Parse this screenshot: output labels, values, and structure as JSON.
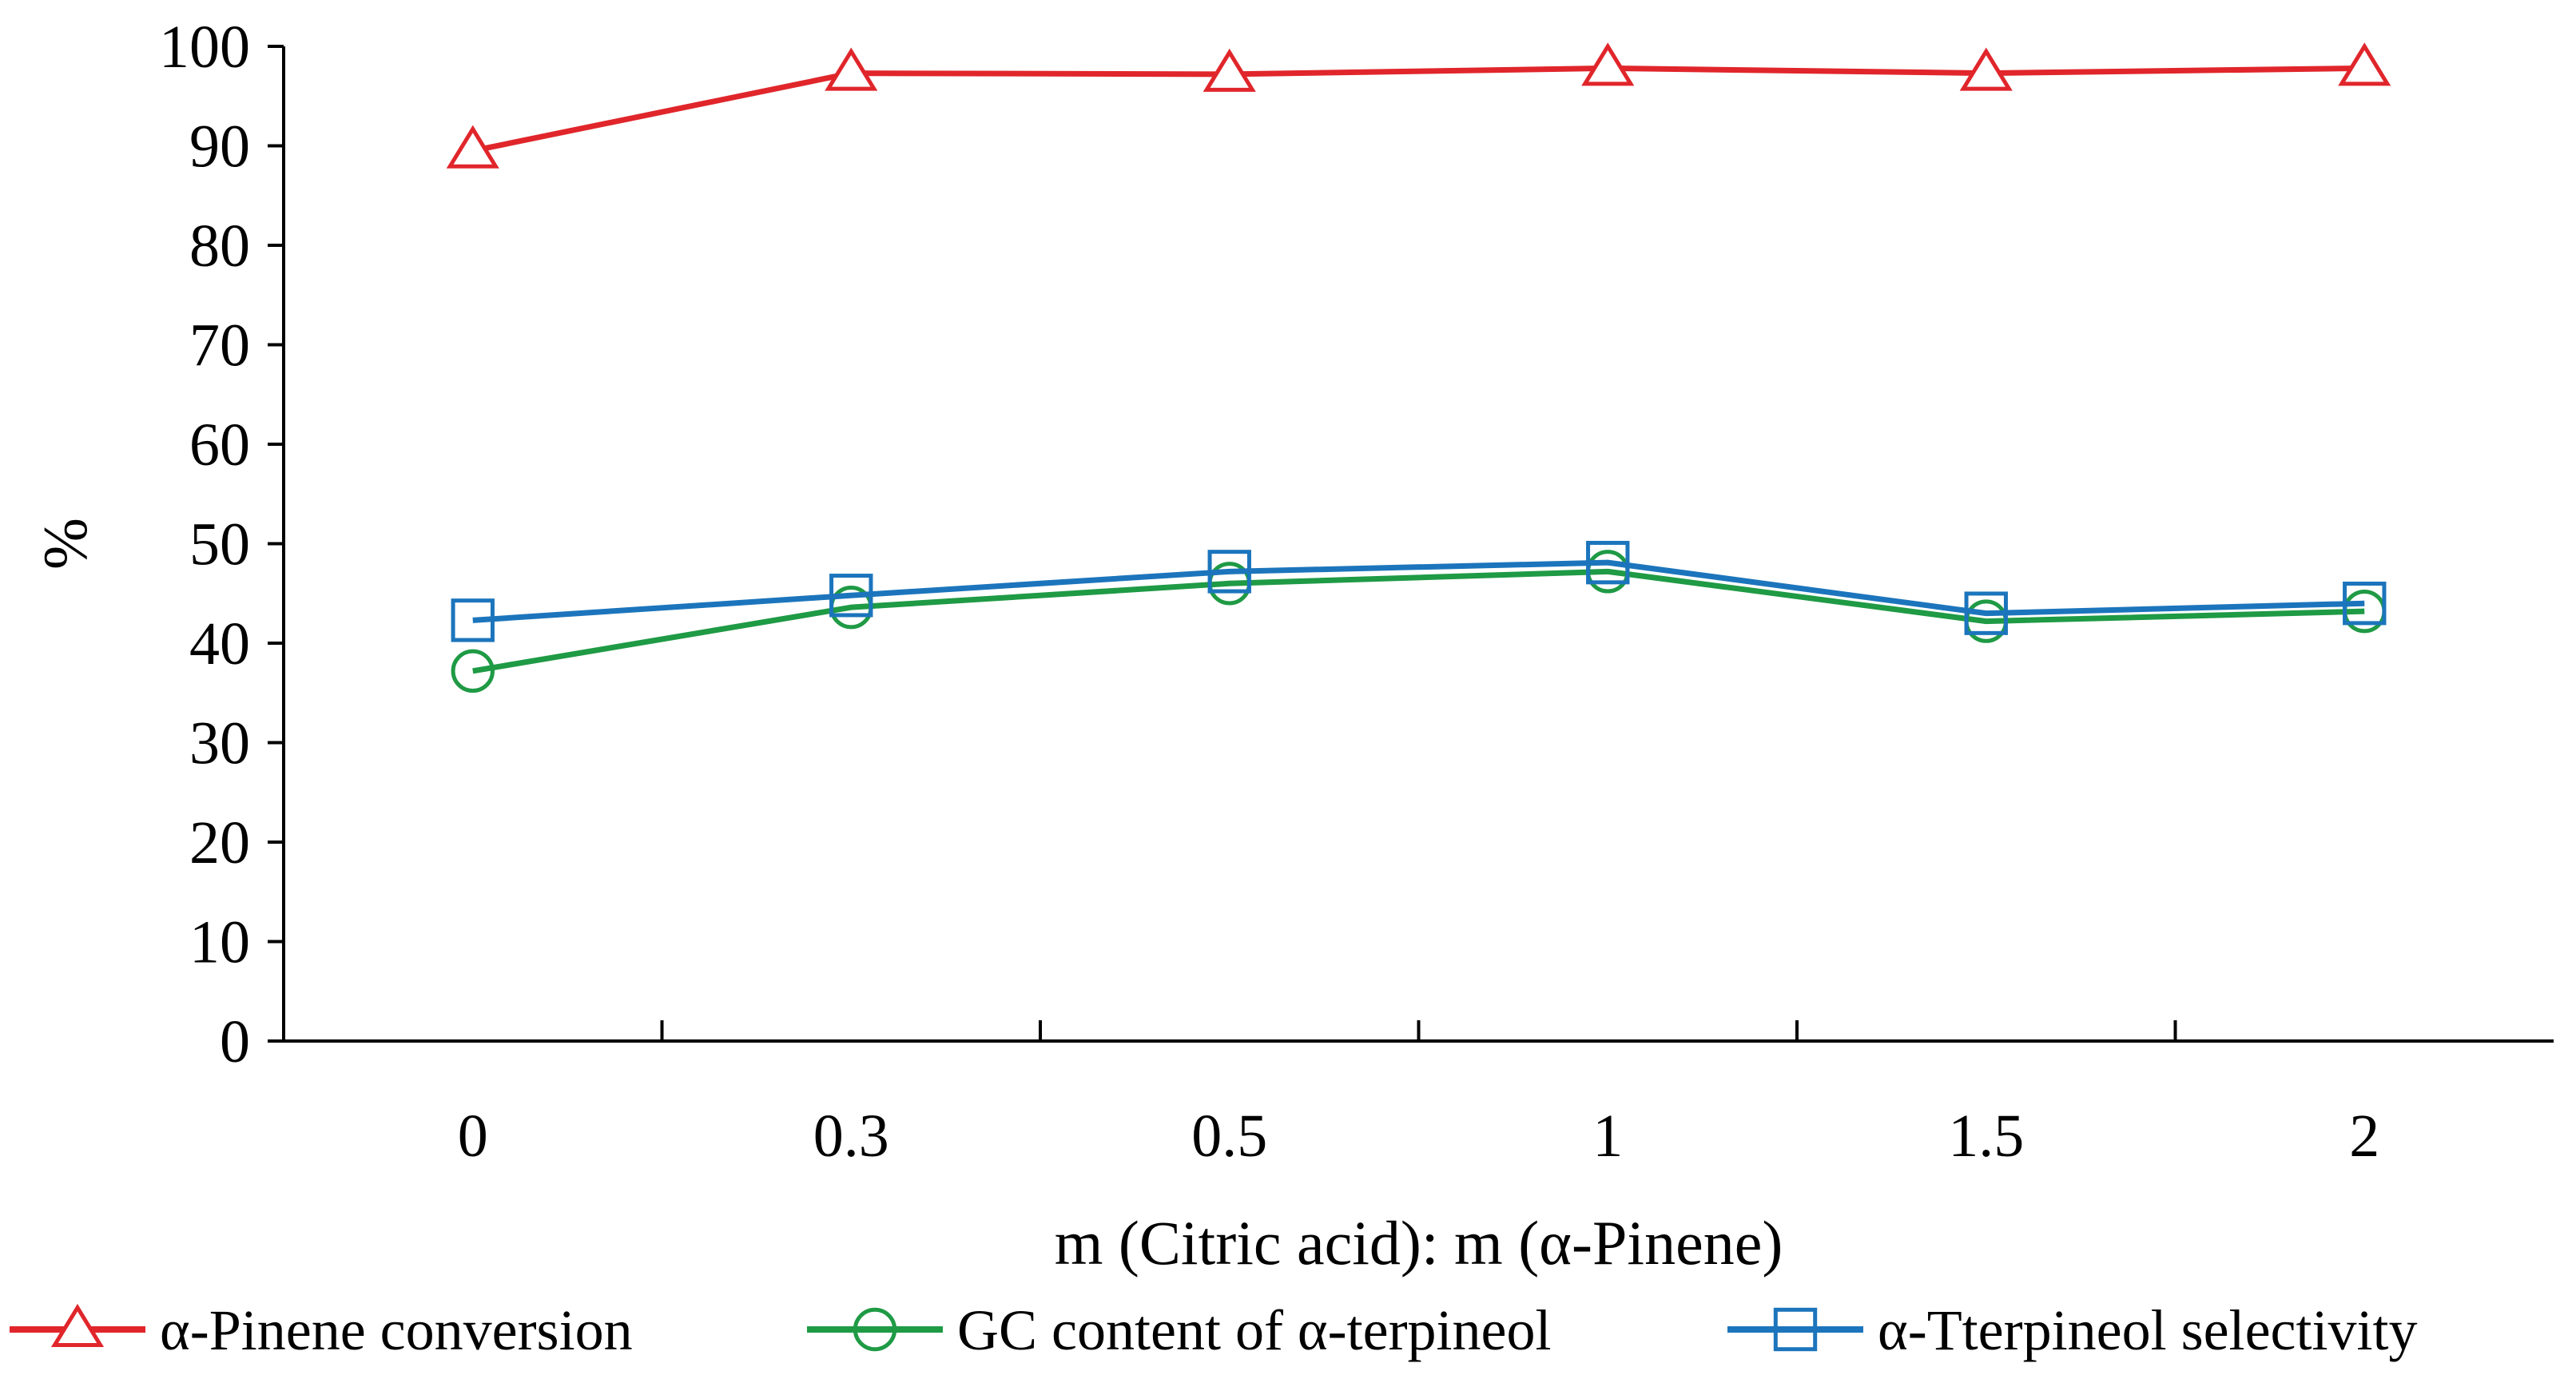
{
  "chart_data": {
    "type": "line",
    "title": "",
    "xlabel": "m (Citric acid): m (α-Pinene)",
    "ylabel": "%",
    "categories": [
      "0",
      "0.3",
      "0.5",
      "1",
      "1.5",
      "2"
    ],
    "ylim": [
      0,
      100
    ],
    "yticks": [
      "0",
      "10",
      "20",
      "30",
      "40",
      "50",
      "60",
      "70",
      "80",
      "90",
      "100"
    ],
    "grid": false,
    "legend_position": "bottom",
    "series": [
      {
        "name": "α-Pinene conversion",
        "color": "#e0262b",
        "marker": "triangle",
        "values": [
          89.5,
          97.3,
          97.2,
          97.8,
          97.3,
          97.8
        ]
      },
      {
        "name": "GC content of α-terpineol",
        "color": "#1f9a45",
        "marker": "circle",
        "values": [
          37.2,
          43.6,
          46.0,
          47.2,
          42.2,
          43.2
        ]
      },
      {
        "name": "α-Tterpineol selectivity",
        "color": "#1c75bc",
        "marker": "square",
        "values": [
          42.3,
          44.8,
          47.2,
          48.1,
          43.0,
          44.0
        ]
      }
    ]
  }
}
